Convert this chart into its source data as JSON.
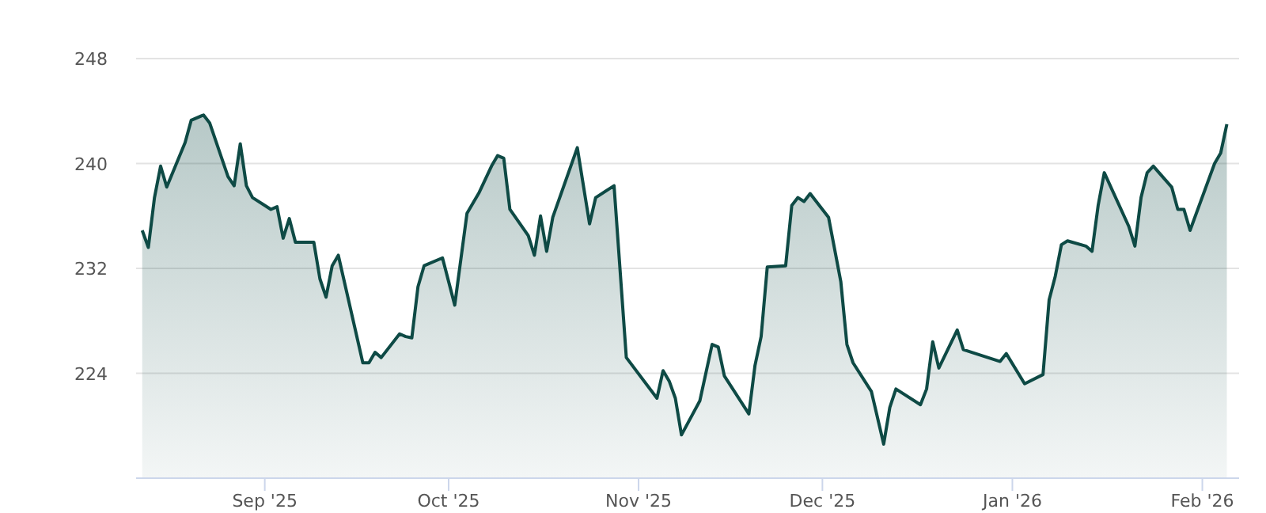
{
  "chart_data": {
    "type": "area",
    "grid": "y",
    "xlim": [
      "2025-08-11",
      "2026-02-07"
    ],
    "ylim": [
      216,
      248
    ],
    "yticks": [
      224,
      232,
      240,
      248
    ],
    "xticks": [
      {
        "value": "2025-09-01",
        "label": "Sep '25"
      },
      {
        "value": "2025-10-01",
        "label": "Oct '25"
      },
      {
        "value": "2025-11-01",
        "label": "Nov '25"
      },
      {
        "value": "2025-12-01",
        "label": "Dec '25"
      },
      {
        "value": "2026-01-01",
        "label": "Jan '26"
      },
      {
        "value": "2026-02-01",
        "label": "Feb '26"
      }
    ],
    "x": [
      "2025-08-12",
      "2025-08-13",
      "2025-08-14",
      "2025-08-15",
      "2025-08-16",
      "2025-08-19",
      "2025-08-20",
      "2025-08-22",
      "2025-08-23",
      "2025-08-26",
      "2025-08-27",
      "2025-08-28",
      "2025-08-29",
      "2025-08-30",
      "2025-09-02",
      "2025-09-03",
      "2025-09-04",
      "2025-09-05",
      "2025-09-06",
      "2025-09-09",
      "2025-09-10",
      "2025-09-11",
      "2025-09-12",
      "2025-09-13",
      "2025-09-17",
      "2025-09-18",
      "2025-09-19",
      "2025-09-20",
      "2025-09-23",
      "2025-09-24",
      "2025-09-25",
      "2025-09-26",
      "2025-09-27",
      "2025-09-30",
      "2025-10-02",
      "2025-10-04",
      "2025-10-06",
      "2025-10-08",
      "2025-10-09",
      "2025-10-10",
      "2025-10-11",
      "2025-10-14",
      "2025-10-15",
      "2025-10-16",
      "2025-10-17",
      "2025-10-18",
      "2025-10-22",
      "2025-10-24",
      "2025-10-25",
      "2025-10-28",
      "2025-10-30",
      "2025-11-04",
      "2025-11-05",
      "2025-11-06",
      "2025-11-07",
      "2025-11-08",
      "2025-11-11",
      "2025-11-13",
      "2025-11-14",
      "2025-11-15",
      "2025-11-19",
      "2025-11-20",
      "2025-11-21",
      "2025-11-22",
      "2025-11-25",
      "2025-11-26",
      "2025-11-27",
      "2025-11-28",
      "2025-11-29",
      "2025-12-02",
      "2025-12-04",
      "2025-12-05",
      "2025-12-06",
      "2025-12-09",
      "2025-12-11",
      "2025-12-12",
      "2025-12-13",
      "2025-12-17",
      "2025-12-18",
      "2025-12-19",
      "2025-12-20",
      "2025-12-23",
      "2025-12-24",
      "2025-12-30",
      "2025-12-31",
      "2026-01-03",
      "2026-01-06",
      "2026-01-07",
      "2026-01-08",
      "2026-01-09",
      "2026-01-10",
      "2026-01-13",
      "2026-01-14",
      "2026-01-15",
      "2026-01-16",
      "2026-01-20",
      "2026-01-21",
      "2026-01-22",
      "2026-01-23",
      "2026-01-24",
      "2026-01-27",
      "2026-01-28",
      "2026-01-29",
      "2026-01-30",
      "2026-02-03",
      "2026-02-04",
      "2026-02-05"
    ],
    "series": [
      {
        "color": "#0e4a45",
        "values": [
          234.9,
          233.6,
          237.4,
          239.8,
          238.2,
          241.6,
          243.3,
          243.7,
          243.1,
          239.0,
          238.3,
          241.5,
          238.3,
          237.4,
          236.5,
          236.7,
          234.3,
          235.8,
          234.0,
          234.0,
          231.2,
          229.8,
          232.2,
          233.0,
          224.8,
          224.8,
          225.6,
          225.2,
          227.0,
          226.8,
          226.7,
          230.6,
          232.2,
          232.8,
          229.2,
          236.2,
          237.8,
          239.8,
          240.6,
          240.4,
          236.5,
          234.5,
          233.0,
          236.0,
          233.3,
          235.9,
          241.2,
          235.4,
          237.4,
          238.3,
          225.2,
          222.1,
          224.2,
          223.4,
          222.1,
          219.3,
          221.9,
          226.2,
          226.0,
          223.8,
          220.9,
          224.6,
          226.8,
          232.1,
          232.2,
          236.8,
          237.4,
          237.1,
          237.7,
          235.9,
          231.0,
          226.2,
          224.8,
          222.6,
          218.6,
          221.4,
          222.8,
          221.6,
          222.8,
          226.4,
          224.4,
          227.3,
          225.8,
          224.9,
          225.5,
          223.2,
          223.9,
          229.6,
          231.4,
          233.8,
          234.1,
          233.7,
          233.3,
          236.8,
          239.3,
          235.2,
          233.7,
          237.4,
          239.3,
          239.8,
          238.2,
          236.5,
          236.5,
          234.9,
          240.0,
          240.8,
          243.0
        ]
      }
    ]
  }
}
